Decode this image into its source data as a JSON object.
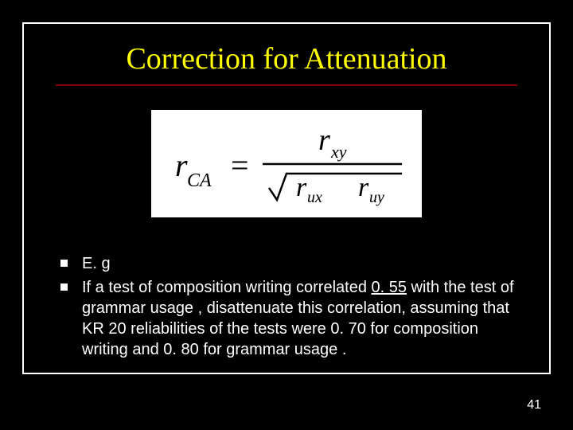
{
  "title": "Correction for Attenuation",
  "formula": {
    "lhs_var": "r",
    "lhs_sub": "CA",
    "numerator_var": "r",
    "numerator_sub": "xy",
    "denom_left_var": "r",
    "denom_left_sub": "ux",
    "denom_right_var": "r",
    "denom_right_sub": "uy",
    "colors": {
      "text": "#000000",
      "bg": "#ffffff"
    },
    "font": "italic serif"
  },
  "bullets": [
    {
      "text": "E. g"
    },
    {
      "text": "If a test of composition writing correlated {u}0. 55{/u} with the test of grammar usage , disattenuate this correlation, assuming that KR 20 reliabilities of the tests were  0. 70 for composition writing and 0. 80 for grammar usage ."
    }
  ],
  "page_number": "41",
  "colors": {
    "background": "#000000",
    "frame_border": "#ffffff",
    "title": "#ffff00",
    "title_underline": "#8b0000",
    "body_text": "#ffffff",
    "bullet_square": "#ffffff"
  }
}
